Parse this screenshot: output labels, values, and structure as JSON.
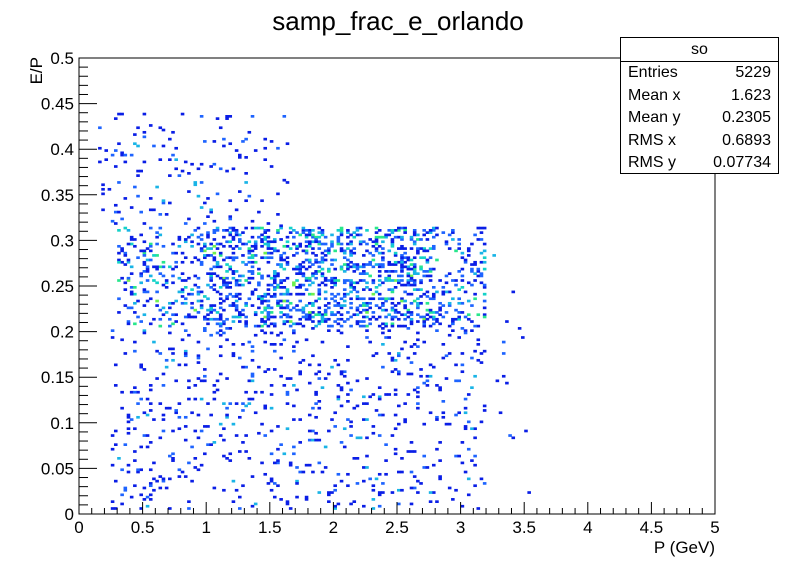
{
  "chart_data": {
    "type": "heatmap",
    "title": "samp_frac_e_orlando",
    "xlabel": "P (GeV)",
    "ylabel": "E/P",
    "xlim": [
      0,
      5
    ],
    "ylim": [
      0,
      0.5
    ],
    "x_ticks": [
      "0",
      "0.5",
      "1",
      "1.5",
      "2",
      "2.5",
      "3",
      "3.5",
      "4",
      "4.5",
      "5"
    ],
    "y_ticks": [
      "0",
      "0.05",
      "0.1",
      "0.15",
      "0.2",
      "0.25",
      "0.3",
      "0.35",
      "0.4",
      "0.45",
      "0.5"
    ],
    "grid": false,
    "legend": "none",
    "bins": {
      "nx": 200,
      "ny": 200
    },
    "palette": [
      "#0a1ee6",
      "#1e64ff",
      "#19b4e6",
      "#14d2c8",
      "#28e68c",
      "#6ef050"
    ],
    "density_regions": [
      {
        "x_range": [
          0.3,
          3.2
        ],
        "y_range": [
          0.21,
          0.31
        ],
        "center": [
          1.9,
          0.265
        ],
        "level": "high"
      },
      {
        "x_range": [
          0.3,
          3.2
        ],
        "y_range": [
          0.0,
          0.21
        ],
        "level": "low"
      },
      {
        "x_range": [
          0.1,
          1.5
        ],
        "y_range": [
          0.31,
          0.45
        ],
        "level": "sparse"
      }
    ],
    "stats": {
      "name": "so",
      "entries": {
        "label": "Entries",
        "value": "5229"
      },
      "mean_x": {
        "label": "Mean x",
        "value": "1.623"
      },
      "mean_y": {
        "label": "Mean y",
        "value": "0.2305"
      },
      "rms_x": {
        "label": "RMS x",
        "value": "0.6893"
      },
      "rms_y": {
        "label": "RMS y",
        "value": "0.07734"
      }
    }
  }
}
